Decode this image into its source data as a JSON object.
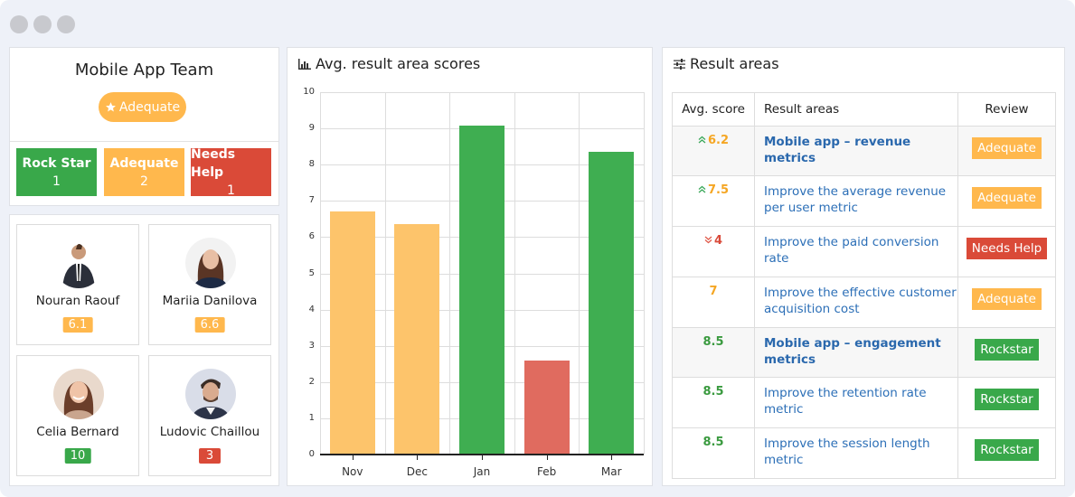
{
  "window": {
    "controls": [
      "close",
      "minimize",
      "maximize"
    ]
  },
  "team": {
    "title": "Mobile App Team",
    "badge_label": "Adequate",
    "badge_icon": "star-icon",
    "stats": [
      {
        "label": "Rock Star",
        "count": "1",
        "color": "#39a84a"
      },
      {
        "label": "Adequate",
        "count": "2",
        "color": "#ffb84d"
      },
      {
        "label": "Needs Help",
        "count": "1",
        "color": "#da4a38"
      }
    ]
  },
  "members": [
    {
      "name": "Nouran Raouf",
      "score": "6.1",
      "color": "#ffb84d"
    },
    {
      "name": "Mariia Danilova",
      "score": "6.6",
      "color": "#ffb84d"
    },
    {
      "name": "Celia Bernard",
      "score": "10",
      "color": "#39a84a"
    },
    {
      "name": "Ludovic Chaillou",
      "score": "3",
      "color": "#da4a38"
    }
  ],
  "chart_panel": {
    "title": "Avg. result area scores",
    "icon": "bar-chart-icon"
  },
  "chart_data": {
    "type": "bar",
    "title": "Avg. result area scores",
    "categories": [
      "Nov",
      "Dec",
      "Jan",
      "Feb",
      "Mar"
    ],
    "values": [
      6.7,
      6.35,
      9.07,
      2.6,
      8.35
    ],
    "colors": [
      "#fdc46b",
      "#fdc46b",
      "#3fae51",
      "#e06b5f",
      "#3fae51"
    ],
    "xlabel": "",
    "ylabel": "",
    "ylim": [
      0,
      10
    ],
    "yticks": [
      "0",
      "1",
      "2",
      "3",
      "4",
      "5",
      "6",
      "7",
      "8",
      "9",
      "10"
    ],
    "grid": true
  },
  "results_panel": {
    "title": "Result areas",
    "icon": "sliders-icon",
    "headers": [
      "Avg. score",
      "Result areas",
      "Review"
    ],
    "rows": [
      {
        "trend": "up",
        "score": "6.2",
        "score_color": "#f5a623",
        "area": "Mobile app – revenue metrics",
        "group": true,
        "review": "Adequate",
        "review_color": "#ffb84d"
      },
      {
        "trend": "up",
        "score": "7.5",
        "score_color": "#f5a623",
        "area": "Improve the average revenue per user metric",
        "group": false,
        "review": "Adequate",
        "review_color": "#ffb84d"
      },
      {
        "trend": "down",
        "score": "4",
        "score_color": "#d94a3a",
        "area": "Improve the paid conversion rate",
        "group": false,
        "review": "Needs Help",
        "review_color": "#da4a38"
      },
      {
        "trend": "",
        "score": "7",
        "score_color": "#f5a623",
        "area": "Improve the effective customer acquisition cost",
        "group": false,
        "review": "Adequate",
        "review_color": "#ffb84d"
      },
      {
        "trend": "",
        "score": "8.5",
        "score_color": "#3a9a3f",
        "area": "Mobile app – engagement metrics",
        "group": true,
        "review": "Rockstar",
        "review_color": "#39a84a"
      },
      {
        "trend": "",
        "score": "8.5",
        "score_color": "#3a9a3f",
        "area": "Improve the retention rate metric",
        "group": false,
        "review": "Rockstar",
        "review_color": "#39a84a"
      },
      {
        "trend": "",
        "score": "8.5",
        "score_color": "#3a9a3f",
        "area": "Improve the session length metric",
        "group": false,
        "review": "Rockstar",
        "review_color": "#39a84a"
      }
    ]
  }
}
